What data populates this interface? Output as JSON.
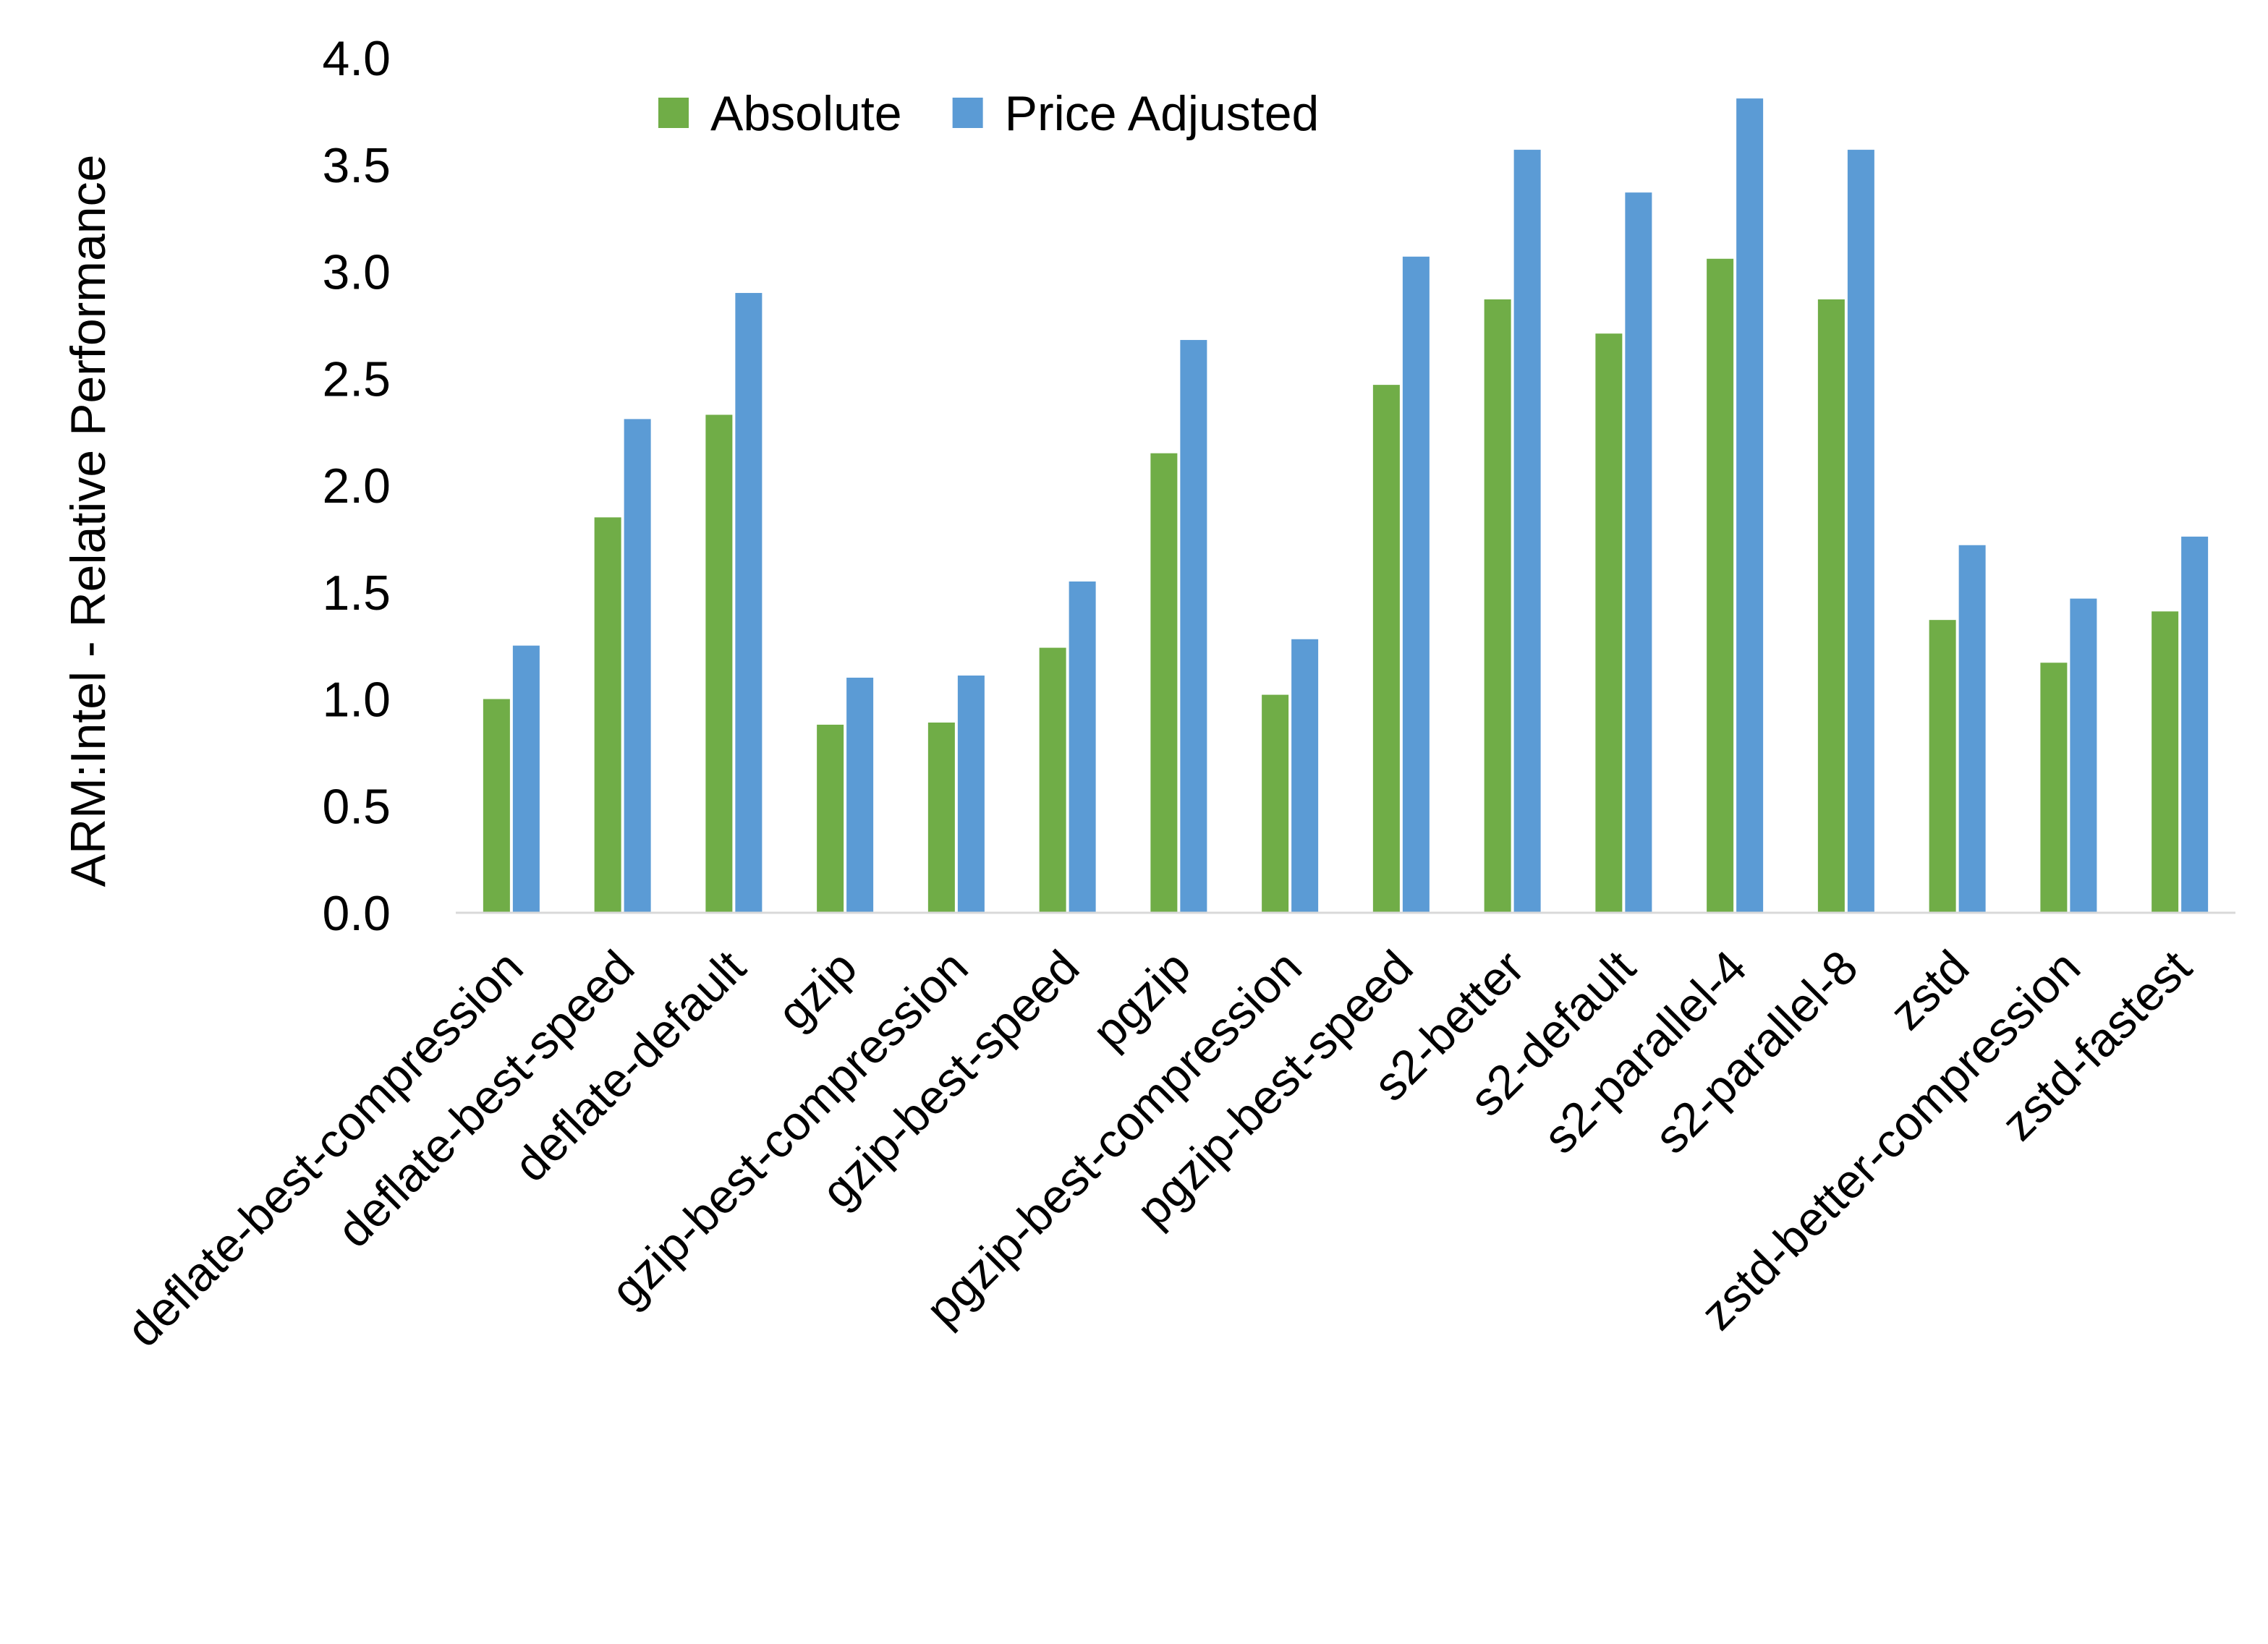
{
  "chart_data": {
    "type": "bar",
    "title": "",
    "xlabel": "",
    "ylabel": "ARM:Intel - Relative Performance",
    "ylim": [
      0,
      4
    ],
    "yticks": [
      "0.0",
      "0.5",
      "1.0",
      "1.5",
      "2.0",
      "2.5",
      "3.0",
      "3.5",
      "4.0"
    ],
    "grid": false,
    "legend_position": "top",
    "categories": [
      "deflate-best-compression",
      "deflate-best-speed",
      "deflate-default",
      "gzip",
      "gzip-best-compression",
      "gzip-best-speed",
      "pgzip",
      "pgzip-best-compression",
      "pgzip-best-speed",
      "s2-better",
      "s2-default",
      "s2-parallel-4",
      "s2-parallel-8",
      "zstd",
      "zstd-better-compression",
      "zstd-fastest"
    ],
    "series": [
      {
        "name": "Absolute",
        "color": "#70ad47",
        "values": [
          1.0,
          1.85,
          2.33,
          0.88,
          0.89,
          1.24,
          2.15,
          1.02,
          2.47,
          2.87,
          2.71,
          3.06,
          2.87,
          1.37,
          1.17,
          1.41
        ]
      },
      {
        "name": "Price Adjusted",
        "color": "#5b9bd5",
        "values": [
          1.25,
          2.31,
          2.9,
          1.1,
          1.11,
          1.55,
          2.68,
          1.28,
          3.07,
          3.57,
          3.37,
          3.81,
          3.57,
          1.72,
          1.47,
          1.76
        ]
      }
    ]
  }
}
